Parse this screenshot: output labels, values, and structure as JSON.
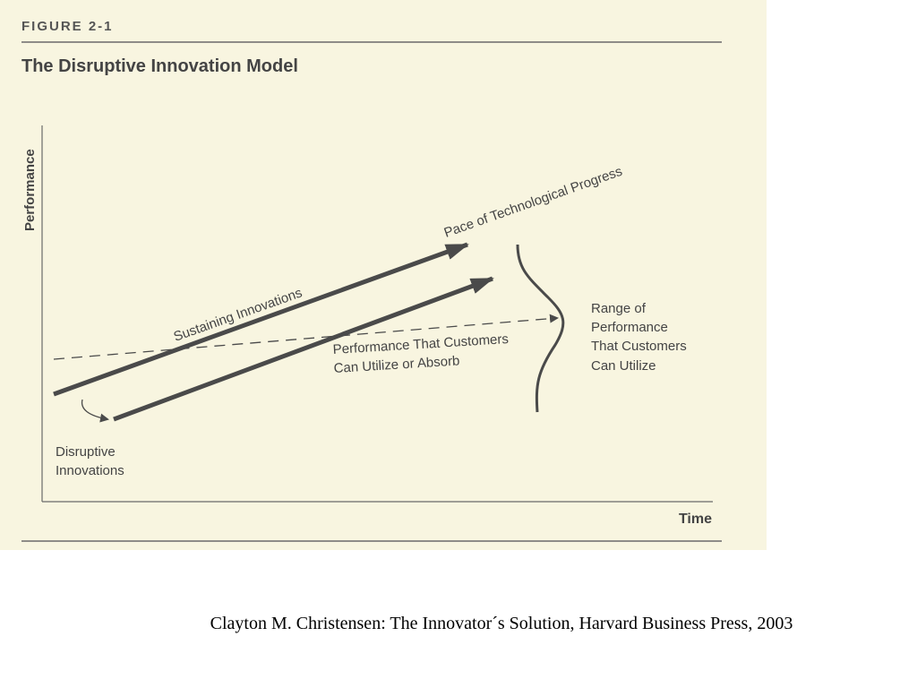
{
  "figure": {
    "label": "FIGURE 2-1",
    "title": "The Disruptive Innovation Model",
    "y_axis_label": "Performance",
    "x_axis_label": "Time",
    "curves": {
      "technological_progress": "Pace of Technological Progress",
      "sustaining": "Sustaining Innovations",
      "customer_line": [
        "Performance That Customers",
        "Can Utilize or Absorb"
      ],
      "disruptive": [
        "Disruptive",
        "Innovations"
      ],
      "range": [
        "Range of",
        "Performance",
        "That Customers",
        "Can Utilize"
      ]
    },
    "colors": {
      "background": "#f8f5e0",
      "ink": "#4a4a4a",
      "rule": "#6a6a6a"
    }
  },
  "caption": "Clayton M. Christensen: The Innovator´s Solution, Harvard Business Press, 2003"
}
